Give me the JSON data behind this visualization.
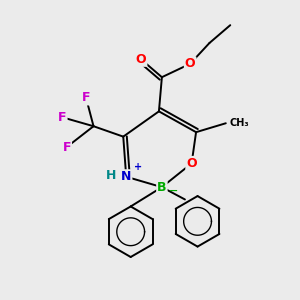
{
  "bg_color": "#ebebeb",
  "bond_color": "#000000",
  "bond_width": 1.4,
  "atom_colors": {
    "O": "#ff0000",
    "N": "#0000cc",
    "B": "#00aa00",
    "F": "#cc00cc",
    "H": "#008888",
    "C": "#000000"
  },
  "font_size": 9
}
